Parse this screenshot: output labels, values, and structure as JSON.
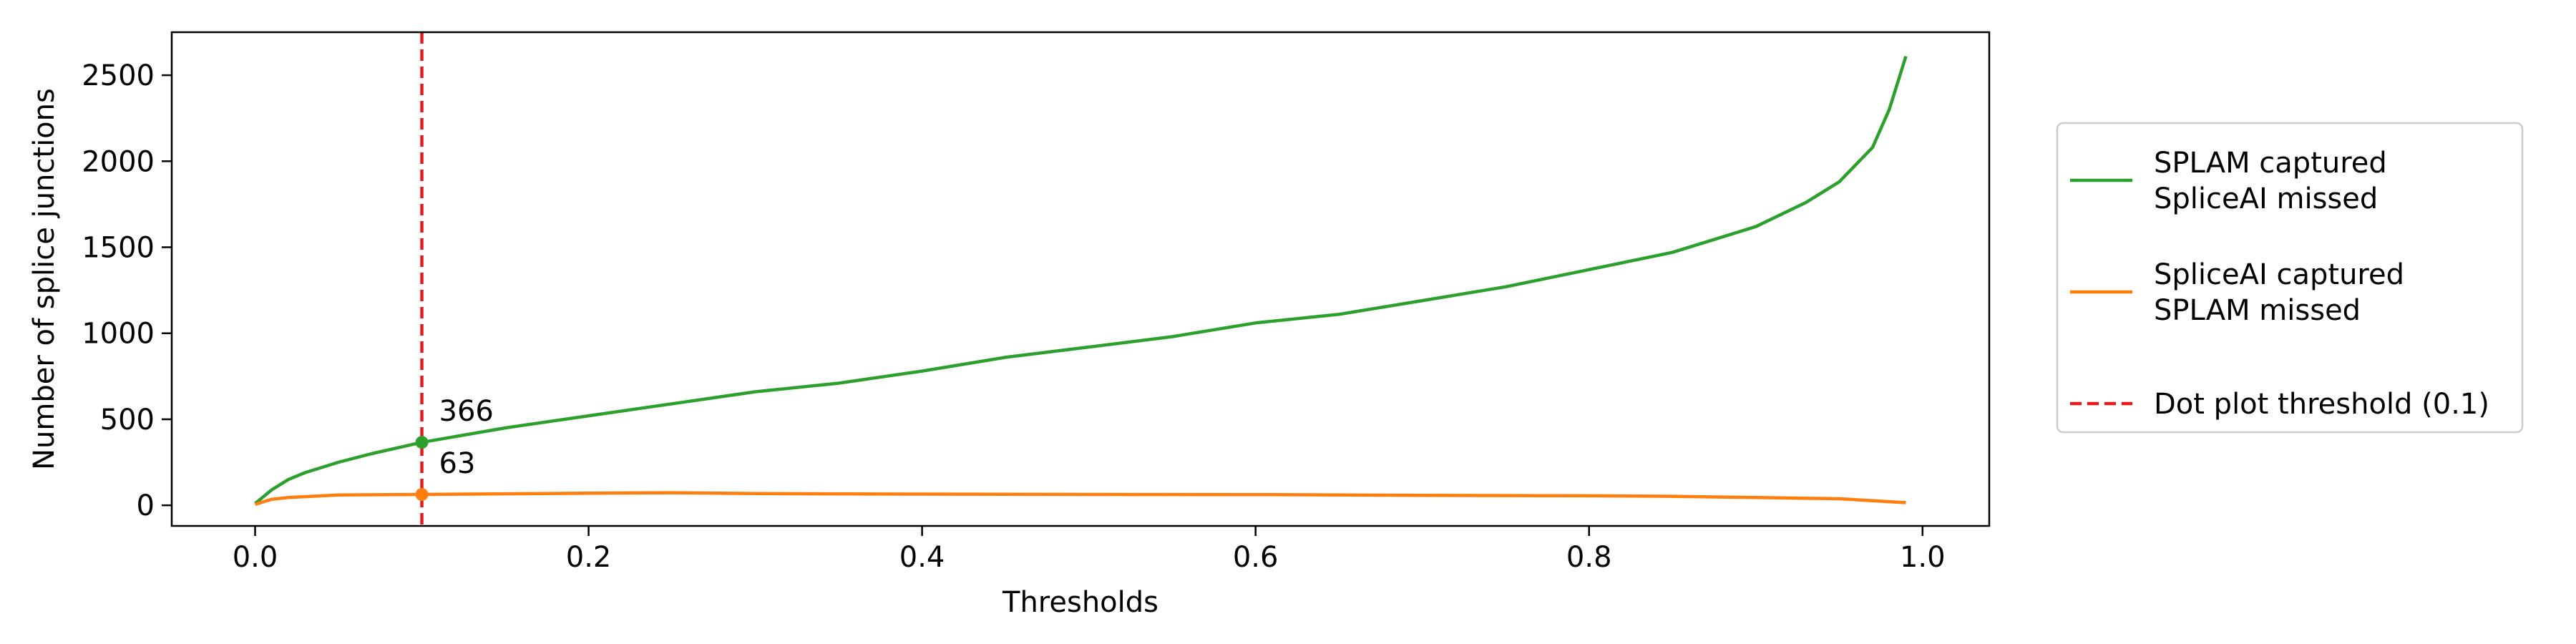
{
  "chart_data": {
    "type": "line",
    "title": "",
    "xlabel": "Thresholds",
    "ylabel": "Number of splice junctions",
    "xlim": [
      -0.05,
      1.04
    ],
    "ylim": [
      -120,
      2750
    ],
    "xticks": [
      0.0,
      0.2,
      0.4,
      0.6,
      0.8,
      1.0
    ],
    "xtick_labels": [
      "0.0",
      "0.2",
      "0.4",
      "0.6",
      "0.8",
      "1.0"
    ],
    "yticks": [
      0,
      500,
      1000,
      1500,
      2000,
      2500
    ],
    "ytick_labels": [
      "0",
      "500",
      "1000",
      "1500",
      "2000",
      "2500"
    ],
    "grid": false,
    "legend_position": "outside right",
    "series": [
      {
        "name": "SPLAM captured\nSpliceAI missed",
        "color": "#2ca02c",
        "x": [
          0.0,
          0.01,
          0.02,
          0.03,
          0.05,
          0.07,
          0.1,
          0.15,
          0.2,
          0.25,
          0.3,
          0.35,
          0.4,
          0.45,
          0.5,
          0.55,
          0.6,
          0.65,
          0.7,
          0.75,
          0.8,
          0.85,
          0.9,
          0.93,
          0.95,
          0.97,
          0.98,
          0.99
        ],
        "y": [
          10,
          90,
          150,
          190,
          250,
          300,
          366,
          450,
          520,
          590,
          660,
          710,
          780,
          860,
          920,
          980,
          1060,
          1110,
          1190,
          1270,
          1370,
          1470,
          1620,
          1760,
          1880,
          2080,
          2300,
          2610
        ]
      },
      {
        "name": "SpliceAI captured\nSPLAM missed",
        "color": "#ff7f0e",
        "x": [
          0.0,
          0.01,
          0.02,
          0.05,
          0.1,
          0.2,
          0.25,
          0.3,
          0.4,
          0.5,
          0.6,
          0.7,
          0.8,
          0.85,
          0.9,
          0.95,
          0.99
        ],
        "y": [
          5,
          35,
          45,
          60,
          63,
          70,
          73,
          68,
          65,
          63,
          62,
          58,
          55,
          52,
          45,
          38,
          15
        ]
      }
    ],
    "threshold_line": {
      "label": "Dot plot threshold (0.1)",
      "x": 0.1,
      "color": "#e41a1c",
      "style": "dashed"
    },
    "markers": [
      {
        "x": 0.1,
        "y": 366,
        "label": "366",
        "color": "#2ca02c"
      },
      {
        "x": 0.1,
        "y": 63,
        "label": "63",
        "color": "#ff7f0e"
      }
    ]
  }
}
